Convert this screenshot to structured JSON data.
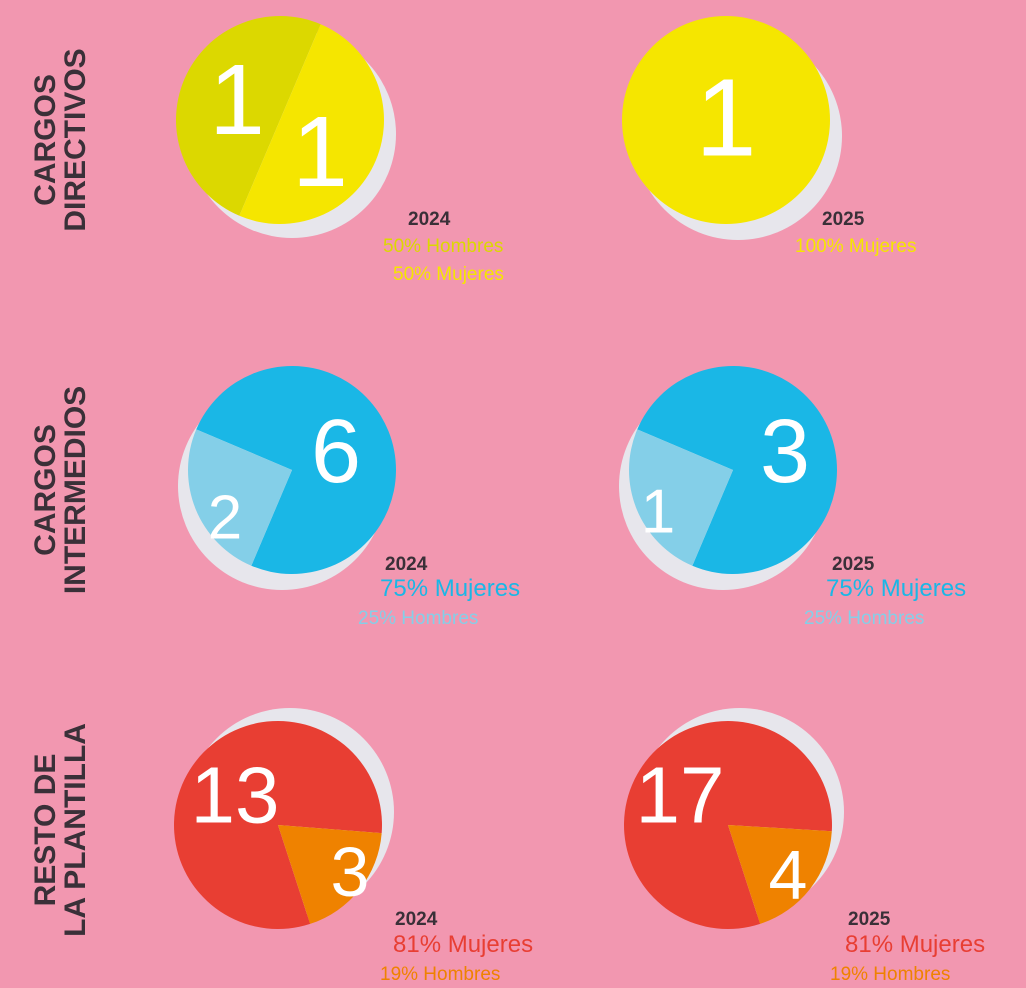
{
  "row_labels": [
    [
      "CARGOS",
      "DIRECTIVOS"
    ],
    [
      "CARGOS",
      "INTERMEDIOS"
    ],
    [
      "RESTO DE",
      "LA PLANTILLA"
    ]
  ],
  "chart_data": [
    {
      "type": "pie",
      "title": "2024",
      "values": [
        1,
        1
      ],
      "labels": [
        "50% Hombres",
        "50% Mujeres"
      ],
      "colors": [
        "#dcd800",
        "#f5e600"
      ]
    },
    {
      "type": "pie",
      "title": "2025",
      "values": [
        1
      ],
      "labels": [
        "100% Mujeres"
      ],
      "colors": [
        "#f5e600"
      ]
    },
    {
      "type": "pie",
      "title": "2024",
      "values": [
        6,
        2
      ],
      "labels": [
        "75% Mujeres",
        "25% Hombres"
      ],
      "colors": [
        "#1ab7e6",
        "#84cfe8"
      ]
    },
    {
      "type": "pie",
      "title": "2025",
      "values": [
        3,
        1
      ],
      "labels": [
        "75% Mujeres",
        "25% Hombres"
      ],
      "colors": [
        "#1ab7e6",
        "#84cfe8"
      ]
    },
    {
      "type": "pie",
      "title": "2024",
      "values": [
        13,
        3
      ],
      "labels": [
        "81% Mujeres",
        "19% Hombres"
      ],
      "colors": [
        "#e83e33",
        "#ef8200"
      ]
    },
    {
      "type": "pie",
      "title": "2025",
      "values": [
        17,
        4
      ],
      "labels": [
        "81% Mujeres",
        "19% Hombres"
      ],
      "colors": [
        "#e83e33",
        "#ef8200"
      ]
    }
  ]
}
